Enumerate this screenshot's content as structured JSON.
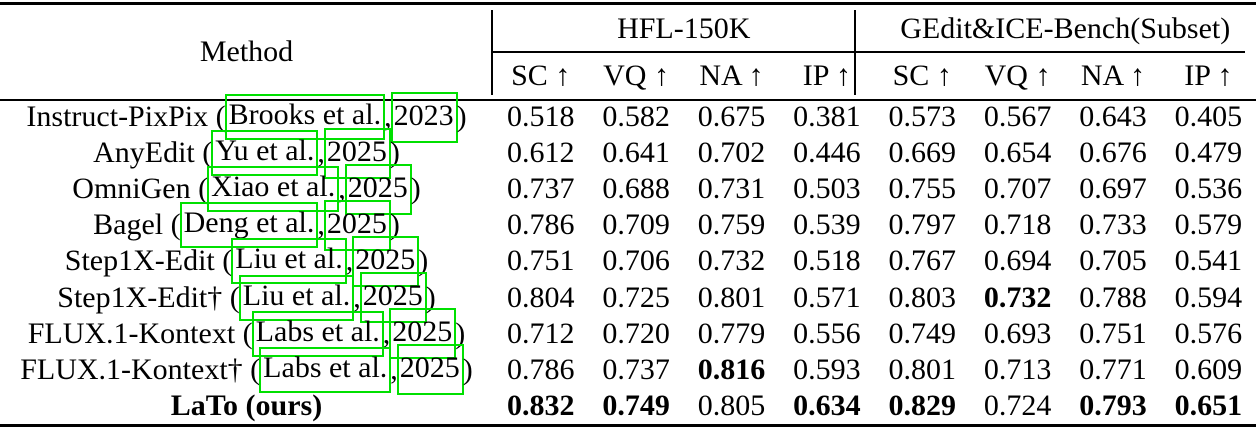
{
  "link_box_color": "#00e000",
  "table": {
    "method_header": "Method",
    "groups": [
      {
        "label": "HFL-150K",
        "metrics": [
          "SC ↑",
          "VQ ↑",
          "NA ↑",
          "IP ↑"
        ]
      },
      {
        "label": "GEdit&ICE-Bench(Subset)",
        "metrics": [
          "SC ↑",
          "VQ ↑",
          "NA ↑",
          "IP ↑"
        ]
      }
    ],
    "rows": [
      {
        "method": "Instruct-PixPix",
        "bold_method": false,
        "cite_author": "Brooks et al.",
        "cite_year": "2023",
        "values": [
          "0.518",
          "0.582",
          "0.675",
          "0.381",
          "0.573",
          "0.567",
          "0.643",
          "0.405"
        ],
        "bold": [
          0,
          0,
          0,
          0,
          0,
          0,
          0,
          0
        ]
      },
      {
        "method": "AnyEdit",
        "bold_method": false,
        "cite_author": "Yu et al.",
        "cite_year": "2025",
        "values": [
          "0.612",
          "0.641",
          "0.702",
          "0.446",
          "0.669",
          "0.654",
          "0.676",
          "0.479"
        ],
        "bold": [
          0,
          0,
          0,
          0,
          0,
          0,
          0,
          0
        ]
      },
      {
        "method": "OmniGen",
        "bold_method": false,
        "cite_author": "Xiao et al.",
        "cite_year": "2025",
        "values": [
          "0.737",
          "0.688",
          "0.731",
          "0.503",
          "0.755",
          "0.707",
          "0.697",
          "0.536"
        ],
        "bold": [
          0,
          0,
          0,
          0,
          0,
          0,
          0,
          0
        ]
      },
      {
        "method": "Bagel",
        "bold_method": false,
        "cite_author": "Deng et al.",
        "cite_year": "2025",
        "values": [
          "0.786",
          "0.709",
          "0.759",
          "0.539",
          "0.797",
          "0.718",
          "0.733",
          "0.579"
        ],
        "bold": [
          0,
          0,
          0,
          0,
          0,
          0,
          0,
          0
        ]
      },
      {
        "method": "Step1X-Edit",
        "bold_method": false,
        "cite_author": "Liu et al.",
        "cite_year": "2025",
        "values": [
          "0.751",
          "0.706",
          "0.732",
          "0.518",
          "0.767",
          "0.694",
          "0.705",
          "0.541"
        ],
        "bold": [
          0,
          0,
          0,
          0,
          0,
          0,
          0,
          0
        ]
      },
      {
        "method": "Step1X-Edit†",
        "bold_method": false,
        "cite_author": "Liu et al.",
        "cite_year": "2025",
        "values": [
          "0.804",
          "0.725",
          "0.801",
          "0.571",
          "0.803",
          "0.732",
          "0.788",
          "0.594"
        ],
        "bold": [
          0,
          0,
          0,
          0,
          0,
          1,
          0,
          0
        ]
      },
      {
        "method": "FLUX.1-Kontext",
        "bold_method": false,
        "cite_author": "Labs et al.",
        "cite_year": "2025",
        "values": [
          "0.712",
          "0.720",
          "0.779",
          "0.556",
          "0.749",
          "0.693",
          "0.751",
          "0.576"
        ],
        "bold": [
          0,
          0,
          0,
          0,
          0,
          0,
          0,
          0
        ]
      },
      {
        "method": "FLUX.1-Kontext†",
        "bold_method": false,
        "cite_author": "Labs et al.",
        "cite_year": "2025",
        "values": [
          "0.786",
          "0.737",
          "0.816",
          "0.593",
          "0.801",
          "0.713",
          "0.771",
          "0.609"
        ],
        "bold": [
          0,
          0,
          1,
          0,
          0,
          0,
          0,
          0
        ]
      },
      {
        "method": "LaTo (ours)",
        "bold_method": true,
        "cite_author": null,
        "cite_year": null,
        "values": [
          "0.832",
          "0.749",
          "0.805",
          "0.634",
          "0.829",
          "0.724",
          "0.793",
          "0.651"
        ],
        "bold": [
          1,
          1,
          0,
          1,
          1,
          0,
          1,
          1
        ]
      }
    ]
  }
}
